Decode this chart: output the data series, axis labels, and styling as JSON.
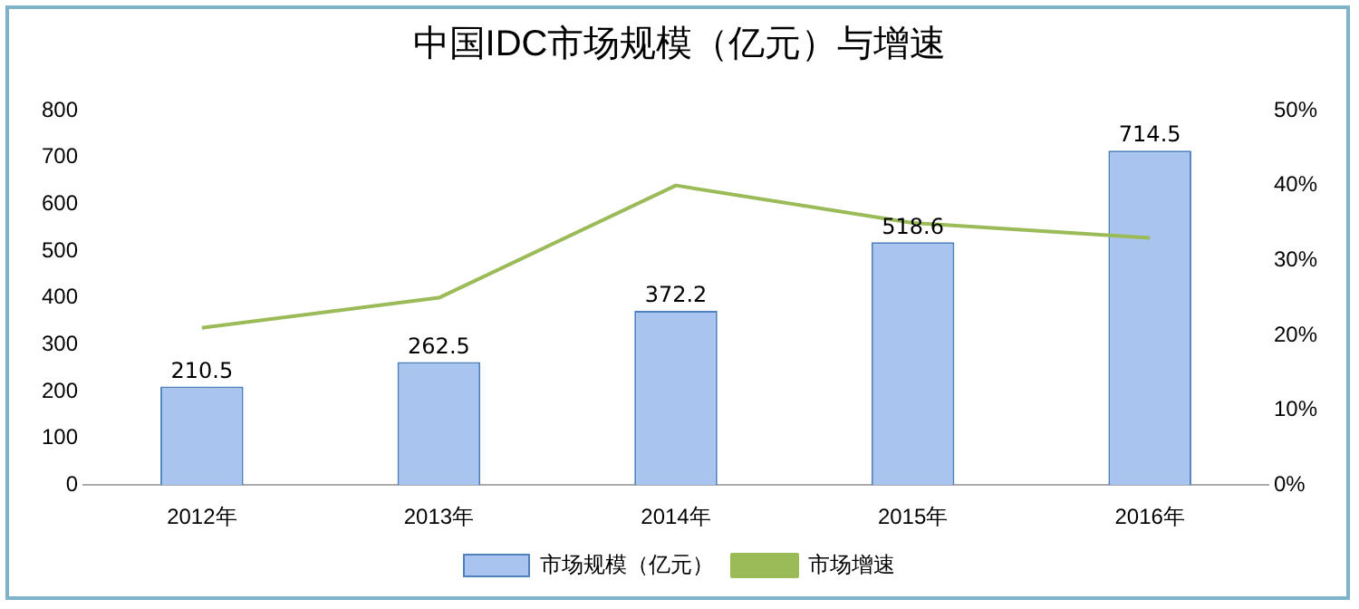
{
  "chart_data": {
    "type": "bar",
    "title": "中国IDC市场规模（亿元）与增速",
    "categories": [
      "2012年",
      "2013年",
      "2014年",
      "2015年",
      "2016年"
    ],
    "series": [
      {
        "name": "市场规模（亿元）",
        "color": "#a9c4ee",
        "values": [
          210.5,
          262.5,
          372.2,
          518.6,
          714.5
        ],
        "value_labels": [
          "210.5",
          "262.5",
          "372.2",
          "518.6",
          "714.5"
        ]
      },
      {
        "name": "市场增速",
        "type": "line",
        "axis": "y2",
        "color": "#9bbb59",
        "values": [
          21,
          25,
          40,
          35,
          33
        ]
      }
    ],
    "ylim": [
      0,
      800
    ],
    "yticks": [
      0,
      100,
      200,
      300,
      400,
      500,
      600,
      700,
      800
    ],
    "y2lim": [
      0,
      50
    ],
    "y2ticks": [
      {
        "value": 0,
        "label": "0%"
      },
      {
        "value": 10,
        "label": "10%"
      },
      {
        "value": 20,
        "label": "20%"
      },
      {
        "value": 30,
        "label": "30%"
      },
      {
        "value": 40,
        "label": "40%"
      },
      {
        "value": 50,
        "label": "50%"
      }
    ],
    "grid": false,
    "legend": "bottom",
    "marker": "none",
    "line_style": "solid"
  }
}
